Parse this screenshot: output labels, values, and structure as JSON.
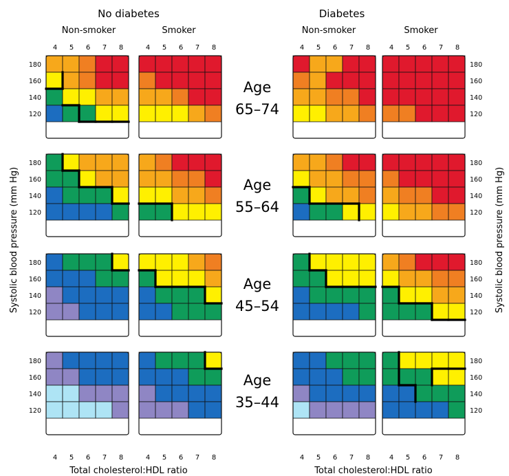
{
  "chart_data": {
    "type": "heatmap",
    "groups": [
      {
        "title": "No diabetes",
        "subgroups": [
          "Non-smoker",
          "Smoker"
        ]
      },
      {
        "title": "Diabetes",
        "subgroups": [
          "Non-smoker",
          "Smoker"
        ]
      }
    ],
    "x_ticks": [
      "4",
      "5",
      "6",
      "7",
      "8"
    ],
    "y_ticks": [
      "180",
      "160",
      "140",
      "120"
    ],
    "xlabel": "Total cholesterol:HDL ratio",
    "ylabel": "Systolic blood pressure (mm Hg)",
    "age_bands": [
      {
        "word": "Age",
        "range": "65–74"
      },
      {
        "word": "Age",
        "range": "55–64"
      },
      {
        "word": "Age",
        "range": "45–54"
      },
      {
        "word": "Age",
        "range": "35–44"
      }
    ],
    "colors": {
      "L": "#aee4f5",
      "P": "#8f86c4",
      "B": "#1c6dc0",
      "G": "#0f9c5a",
      "Y": "#fff000",
      "O": "#f7a81b",
      "D": "#f07f22",
      "R": "#e0192d"
    },
    "panels": [
      [
        [
          "OODRR",
          "YODRR",
          "GYYOO",
          "BGGYY"
        ],
        [
          "RRRRR",
          "DRRRR",
          "OODRR",
          "YYYOD"
        ],
        [
          "ROORR",
          "DORRR",
          "OODDR",
          "YYOOD"
        ],
        [
          "RRRRR",
          "RRRRR",
          "RRRRR",
          "DDRRR"
        ]
      ],
      [
        [
          "GYOOO",
          "GGYOO",
          "BGGGY",
          "BBBBG"
        ],
        [
          "ODRRR",
          "OODDR",
          "YYOOD",
          "GGYYY"
        ],
        [
          "OODRR",
          "YOODD",
          "GYOOD",
          "BGGYY"
        ],
        [
          "RRRRR",
          "DRRRR",
          "ODDRR",
          "YOODD"
        ]
      ],
      [
        [
          "BGGGY",
          "BBBGG",
          "PBBBB",
          "PPBBB"
        ],
        [
          "YYYOD",
          "GYYYO",
          "BGGGY",
          "BBGGG"
        ],
        [
          "GYYYY",
          "GGYYY",
          "BGGGG",
          "BBBBG"
        ],
        [
          "ODRRR",
          "YOODD",
          "GYYOO",
          "GGGYY"
        ]
      ],
      [
        [
          "PBBBB",
          "PPBBB",
          "LLPPP",
          "LLLLP"
        ],
        [
          "BGGGY",
          "BBBGG",
          "PBBBB",
          "PPPBB"
        ],
        [
          "BBGGG",
          "BBBGG",
          "PBBBB",
          "LPPPP"
        ],
        [
          "GYYYY",
          "GGGYY",
          "BBGGG",
          "BBBBG"
        ]
      ]
    ],
    "threshold_borders": [
      [
        {
          "x": 0,
          "y": 2,
          "d": "h"
        },
        {
          "x": 1,
          "y": 1,
          "d": "v"
        },
        {
          "x": 1,
          "y": 3,
          "d": "h"
        },
        {
          "x": 2,
          "y": 3,
          "d": "v"
        },
        {
          "x": 2,
          "y": 4,
          "d": "h"
        },
        {
          "x": 3,
          "y": 4,
          "d": "h"
        },
        {
          "x": 4,
          "y": 4,
          "d": "h"
        }
      ],
      [],
      [],
      [],
      [
        {
          "x": 1,
          "y": 0,
          "d": "v"
        },
        {
          "x": 1,
          "y": 1,
          "d": "h"
        },
        {
          "x": 2,
          "y": 1,
          "d": "v"
        },
        {
          "x": 2,
          "y": 2,
          "d": "h"
        },
        {
          "x": 3,
          "y": 2,
          "d": "h"
        },
        {
          "x": 4,
          "y": 2,
          "d": "v"
        },
        {
          "x": 4,
          "y": 3,
          "d": "h"
        }
      ],
      [
        {
          "x": 0,
          "y": 3,
          "d": "h"
        },
        {
          "x": 1,
          "y": 3,
          "d": "h"
        },
        {
          "x": 2,
          "y": 3,
          "d": "v"
        }
      ],
      [
        {
          "x": 0,
          "y": 2,
          "d": "h"
        },
        {
          "x": 1,
          "y": 2,
          "d": "v"
        },
        {
          "x": 1,
          "y": 3,
          "d": "h"
        },
        {
          "x": 2,
          "y": 3,
          "d": "h"
        },
        {
          "x": 3,
          "y": 3,
          "d": "h"
        },
        {
          "x": 4,
          "y": 3,
          "d": "v"
        }
      ],
      [],
      [
        {
          "x": 4,
          "y": 0,
          "d": "v"
        },
        {
          "x": 4,
          "y": 1,
          "d": "h"
        }
      ],
      [
        {
          "x": 0,
          "y": 1,
          "d": "h"
        },
        {
          "x": 1,
          "y": 1,
          "d": "v"
        },
        {
          "x": 1,
          "y": 2,
          "d": "h"
        },
        {
          "x": 2,
          "y": 2,
          "d": "h"
        },
        {
          "x": 3,
          "y": 2,
          "d": "h"
        },
        {
          "x": 4,
          "y": 2,
          "d": "v"
        },
        {
          "x": 4,
          "y": 3,
          "d": "h"
        }
      ],
      [
        {
          "x": 1,
          "y": 0,
          "d": "v"
        },
        {
          "x": 1,
          "y": 1,
          "d": "h"
        },
        {
          "x": 2,
          "y": 1,
          "d": "v"
        },
        {
          "x": 2,
          "y": 2,
          "d": "h"
        },
        {
          "x": 3,
          "y": 2,
          "d": "h"
        },
        {
          "x": 4,
          "y": 2,
          "d": "h"
        }
      ],
      [
        {
          "x": 0,
          "y": 2,
          "d": "h"
        },
        {
          "x": 1,
          "y": 2,
          "d": "v"
        },
        {
          "x": 1,
          "y": 3,
          "d": "h"
        },
        {
          "x": 2,
          "y": 3,
          "d": "h"
        },
        {
          "x": 3,
          "y": 3,
          "d": "v"
        },
        {
          "x": 3,
          "y": 4,
          "d": "h"
        },
        {
          "x": 4,
          "y": 4,
          "d": "h"
        }
      ],
      [],
      [
        {
          "x": 4,
          "y": 0,
          "d": "v"
        },
        {
          "x": 4,
          "y": 1,
          "d": "h"
        }
      ],
      [],
      [
        {
          "x": 1,
          "y": 0,
          "d": "v"
        },
        {
          "x": 1,
          "y": 1,
          "d": "v"
        },
        {
          "x": 1,
          "y": 2,
          "d": "h"
        },
        {
          "x": 2,
          "y": 2,
          "d": "v"
        },
        {
          "x": 3,
          "y": 1,
          "d": "h"
        },
        {
          "x": 3,
          "y": 1,
          "d": "v"
        },
        {
          "x": 4,
          "y": 1,
          "d": "h"
        }
      ]
    ]
  }
}
